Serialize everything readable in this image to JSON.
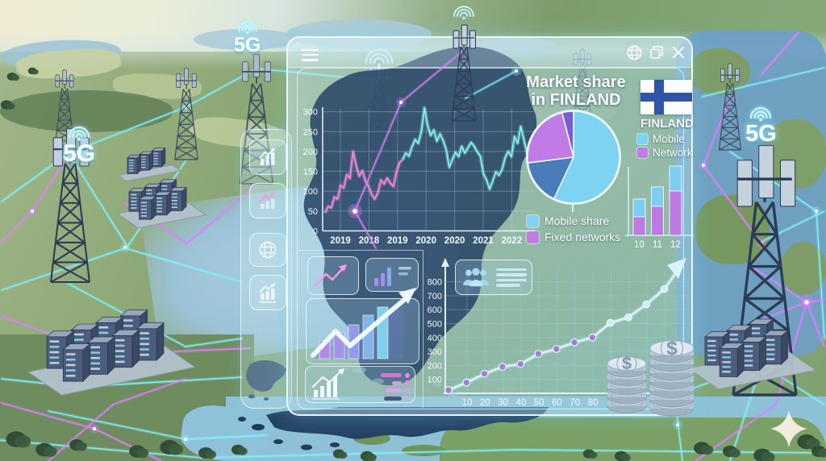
{
  "scene": {
    "labels_5g": [
      "5G",
      "5G",
      "5G"
    ],
    "coin_symbol": "$",
    "decorations": [
      "cell-towers",
      "server-racks",
      "network-links",
      "coin-stacks",
      "sparkle",
      "finland-map"
    ]
  },
  "window": {
    "topbar_icons": [
      {
        "icon": "hamburger-menu-icon"
      },
      {
        "icon": "globe-icon"
      },
      {
        "icon": "restore-window-icon"
      },
      {
        "icon": "close-icon"
      }
    ]
  },
  "header": {
    "title_line1": "Market share",
    "title_line2": "in FINLAND"
  },
  "flag_card": {
    "country": "FINLAND",
    "legend": [
      {
        "label": "Mobile",
        "color": "#7ed3f2"
      },
      {
        "label": "Network",
        "color": "#c07ce4"
      }
    ]
  },
  "sidebar": {
    "items": [
      {
        "icon": "chart-growth-icon"
      },
      {
        "icon": "chart-growth-pink-icon"
      },
      {
        "icon": "globe-icon"
      },
      {
        "icon": "chart-growth-underline-icon"
      }
    ]
  },
  "theme": {
    "accent_cyan": "#7ff0ff",
    "accent_magenta": "#e07fff",
    "panel_tint": "#bfe4ee",
    "map_navy": "#2a4668"
  },
  "chart_data": [
    {
      "id": "network-traffic-line",
      "type": "line",
      "x_tick_labels": [
        "2019",
        "2018",
        "2019",
        "2020",
        "2020",
        "2021",
        "2022"
      ],
      "y_ticks": [
        0,
        50,
        100,
        150,
        200,
        250,
        300
      ],
      "ylim": [
        0,
        310
      ],
      "grid": true,
      "series": [
        {
          "name": "series-pink",
          "color": "#f088dc",
          "values": [
            45,
            62,
            58,
            85,
            80,
            115,
            108,
            142,
            132,
            200,
            165,
            138,
            152,
            125,
            112,
            92,
            80,
            96,
            128,
            118,
            133,
            120,
            112,
            148,
            172,
            180
          ]
        },
        {
          "name": "series-cyan",
          "color": "#86efe9",
          "values": [
            180,
            196,
            188,
            212,
            230,
            220,
            250,
            310,
            266,
            240,
            254,
            226,
            244,
            228,
            204,
            160,
            180,
            198,
            187,
            213,
            196,
            209,
            223,
            213,
            199,
            188,
            144,
            128,
            105,
            126,
            149,
            140,
            155,
            185,
            200,
            187,
            238,
            220,
            263,
            230,
            196,
            198
          ]
        }
      ]
    },
    {
      "id": "market-share-pie",
      "type": "pie",
      "title": "Market share in FINLAND",
      "slices": [
        {
          "label": "Mobile share",
          "value": 57,
          "color": "#7ed3f2"
        },
        {
          "label": "",
          "value": 16,
          "color": "#4a7cba"
        },
        {
          "label": "Fixed networks",
          "value": 23,
          "color": "#c07ce4"
        },
        {
          "label": "",
          "value": 4,
          "color": "#7a5ed0"
        }
      ],
      "legend": [
        {
          "label": "Mobile share",
          "color": "#7ed3f2"
        },
        {
          "label": "Fixed networks",
          "color": "#c07ce4"
        }
      ]
    },
    {
      "id": "mobile-network-bars",
      "type": "bar",
      "stacked": true,
      "categories": [
        "10",
        "11",
        "12"
      ],
      "series": [
        {
          "name": "Network",
          "color": "#bd7ae0",
          "values": [
            23,
            36,
            55
          ]
        },
        {
          "name": "Mobile",
          "color": "#7ccdf2",
          "values": [
            22,
            24,
            31
          ]
        }
      ]
    },
    {
      "id": "subscriber-growth-line",
      "type": "line",
      "x": [
        0,
        10,
        20,
        30,
        40,
        50,
        60,
        70,
        80,
        90,
        100,
        110,
        120
      ],
      "values": [
        23,
        77,
        140,
        190,
        210,
        283,
        318,
        365,
        400,
        505,
        545,
        638,
        748
      ],
      "x_tick_labels": [
        "10",
        "20",
        "30",
        "40",
        "50",
        "60",
        "70",
        "80"
      ],
      "y_ticks": [
        100,
        200,
        300,
        400,
        500,
        600,
        700,
        800
      ],
      "ylim": [
        0,
        860
      ],
      "dot_colors_split": 9,
      "colors": {
        "line": "#d9f3fb",
        "dot_early": "#a07fd8",
        "dot_late": "#cdeef8"
      },
      "annotation": "up-arrow"
    }
  ]
}
